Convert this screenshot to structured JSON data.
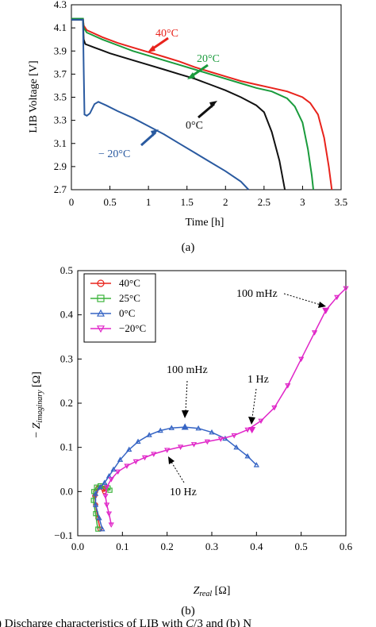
{
  "figure": {
    "panel_a_label": "(a)",
    "panel_b_label": "(b)",
    "caption": ") Discharge characteristics of LIB with C/3 and (b) N"
  },
  "chart_data": [
    {
      "type": "line",
      "panel": "(a)",
      "xlabel": "Time [h]",
      "ylabel": "LIB Voltage [V]",
      "xlim": [
        0,
        3.5
      ],
      "ylim": [
        2.7,
        4.3
      ],
      "xticks": [
        "0",
        "0.5",
        "1",
        "1.5",
        "2",
        "2.5",
        "3",
        "3.5"
      ],
      "yticks": [
        "2.7",
        "2.9",
        "3.1",
        "3.3",
        "3.5",
        "3.7",
        "3.9",
        "4.1",
        "4.3"
      ],
      "grid": false,
      "series": [
        {
          "name": "40°C",
          "color": "#e8231c",
          "points": [
            [
              0,
              4.18
            ],
            [
              0.15,
              4.18
            ],
            [
              0.16,
              4.12
            ],
            [
              0.2,
              4.08
            ],
            [
              0.4,
              4.02
            ],
            [
              0.6,
              3.97
            ],
            [
              0.8,
              3.93
            ],
            [
              1.0,
              3.89
            ],
            [
              1.2,
              3.85
            ],
            [
              1.4,
              3.81
            ],
            [
              1.6,
              3.76
            ],
            [
              1.8,
              3.72
            ],
            [
              2.0,
              3.68
            ],
            [
              2.2,
              3.64
            ],
            [
              2.4,
              3.61
            ],
            [
              2.6,
              3.58
            ],
            [
              2.8,
              3.55
            ],
            [
              3.0,
              3.5
            ],
            [
              3.1,
              3.45
            ],
            [
              3.2,
              3.35
            ],
            [
              3.28,
              3.15
            ],
            [
              3.34,
              2.9
            ],
            [
              3.38,
              2.7
            ]
          ]
        },
        {
          "name": "20°C",
          "color": "#1a9b3c",
          "points": [
            [
              0,
              4.18
            ],
            [
              0.15,
              4.18
            ],
            [
              0.16,
              4.1
            ],
            [
              0.2,
              4.06
            ],
            [
              0.4,
              4.0
            ],
            [
              0.6,
              3.95
            ],
            [
              0.8,
              3.9
            ],
            [
              1.0,
              3.86
            ],
            [
              1.2,
              3.82
            ],
            [
              1.4,
              3.78
            ],
            [
              1.6,
              3.74
            ],
            [
              1.8,
              3.7
            ],
            [
              2.0,
              3.66
            ],
            [
              2.2,
              3.62
            ],
            [
              2.4,
              3.58
            ],
            [
              2.6,
              3.55
            ],
            [
              2.8,
              3.49
            ],
            [
              2.9,
              3.42
            ],
            [
              3.0,
              3.28
            ],
            [
              3.07,
              3.05
            ],
            [
              3.12,
              2.82
            ],
            [
              3.14,
              2.7
            ]
          ]
        },
        {
          "name": "0°C",
          "color": "#111111",
          "points": [
            [
              0,
              4.17
            ],
            [
              0.15,
              4.17
            ],
            [
              0.16,
              4.0
            ],
            [
              0.18,
              3.96
            ],
            [
              0.3,
              3.93
            ],
            [
              0.5,
              3.88
            ],
            [
              0.8,
              3.82
            ],
            [
              1.0,
              3.78
            ],
            [
              1.2,
              3.74
            ],
            [
              1.4,
              3.7
            ],
            [
              1.6,
              3.66
            ],
            [
              1.8,
              3.61
            ],
            [
              2.0,
              3.56
            ],
            [
              2.2,
              3.5
            ],
            [
              2.4,
              3.43
            ],
            [
              2.5,
              3.37
            ],
            [
              2.6,
              3.2
            ],
            [
              2.7,
              2.95
            ],
            [
              2.77,
              2.7
            ]
          ]
        },
        {
          "name": "− 20°C",
          "color": "#2a5aa0",
          "points": [
            [
              0,
              4.17
            ],
            [
              0.15,
              4.17
            ],
            [
              0.16,
              3.75
            ],
            [
              0.17,
              3.35
            ],
            [
              0.2,
              3.34
            ],
            [
              0.24,
              3.36
            ],
            [
              0.3,
              3.44
            ],
            [
              0.35,
              3.46
            ],
            [
              0.45,
              3.43
            ],
            [
              0.6,
              3.38
            ],
            [
              0.8,
              3.32
            ],
            [
              1.0,
              3.25
            ],
            [
              1.2,
              3.18
            ],
            [
              1.4,
              3.1
            ],
            [
              1.6,
              3.02
            ],
            [
              1.8,
              2.94
            ],
            [
              2.0,
              2.86
            ],
            [
              2.2,
              2.77
            ],
            [
              2.3,
              2.7
            ]
          ]
        }
      ],
      "annotations": [
        {
          "text": "40°C",
          "at": [
            1.6,
            3.76
          ]
        },
        {
          "text": "20°C",
          "at": [
            2.2,
            3.62
          ]
        },
        {
          "text": "0°C",
          "at": [
            2.05,
            3.55
          ]
        },
        {
          "text": "− 20°C",
          "at": [
            1.0,
            3.25
          ]
        }
      ]
    },
    {
      "type": "line",
      "panel": "(b)",
      "xlabel": "Z_real [Ω]",
      "ylabel": "− Z_imaginary [Ω]",
      "xlim": [
        0,
        0.6
      ],
      "ylim": [
        -0.1,
        0.5
      ],
      "xticks": [
        "0.0",
        "0.1",
        "0.2",
        "0.3",
        "0.4",
        "0.5",
        "0.6"
      ],
      "yticks": [
        "−0.1",
        "0.0",
        "0.1",
        "0.2",
        "0.3",
        "0.4",
        "0.5"
      ],
      "grid": false,
      "legend": "top-left",
      "series": [
        {
          "name": "40°C",
          "color": "#e8231c",
          "marker": "circle",
          "points": [
            [
              0.05,
              -0.085
            ],
            [
              0.045,
              -0.06
            ],
            [
              0.04,
              -0.03
            ],
            [
              0.038,
              -0.01
            ],
            [
              0.04,
              0.0
            ],
            [
              0.045,
              0.008
            ],
            [
              0.052,
              0.01
            ],
            [
              0.058,
              0.005
            ],
            [
              0.06,
              0.0
            ]
          ]
        },
        {
          "name": "25°C",
          "color": "#3cb33c",
          "marker": "square",
          "points": [
            [
              0.045,
              -0.085
            ],
            [
              0.04,
              -0.05
            ],
            [
              0.035,
              -0.02
            ],
            [
              0.036,
              0.0
            ],
            [
              0.042,
              0.01
            ],
            [
              0.05,
              0.013
            ],
            [
              0.06,
              0.012
            ],
            [
              0.068,
              0.008
            ],
            [
              0.072,
              0.003
            ]
          ]
        },
        {
          "name": "0°C",
          "color": "#3564c4",
          "marker": "triangle-up",
          "points": [
            [
              0.055,
              -0.085
            ],
            [
              0.048,
              -0.06
            ],
            [
              0.04,
              -0.03
            ],
            [
              0.04,
              -0.005
            ],
            [
              0.05,
              0.01
            ],
            [
              0.06,
              0.02
            ],
            [
              0.07,
              0.035
            ],
            [
              0.08,
              0.05
            ],
            [
              0.095,
              0.072
            ],
            [
              0.115,
              0.095
            ],
            [
              0.135,
              0.113
            ],
            [
              0.16,
              0.128
            ],
            [
              0.185,
              0.138
            ],
            [
              0.21,
              0.144
            ],
            [
              0.24,
              0.146
            ],
            [
              0.27,
              0.143
            ],
            [
              0.3,
              0.134
            ],
            [
              0.33,
              0.12
            ],
            [
              0.355,
              0.1
            ],
            [
              0.38,
              0.08
            ],
            [
              0.4,
              0.06
            ]
          ]
        },
        {
          "name": "−20°C",
          "color": "#e026c8",
          "marker": "triangle-down",
          "points": [
            [
              0.075,
              -0.075
            ],
            [
              0.07,
              -0.05
            ],
            [
              0.065,
              -0.03
            ],
            [
              0.062,
              -0.01
            ],
            [
              0.065,
              0.01
            ],
            [
              0.075,
              0.028
            ],
            [
              0.09,
              0.045
            ],
            [
              0.11,
              0.058
            ],
            [
              0.13,
              0.068
            ],
            [
              0.15,
              0.077
            ],
            [
              0.17,
              0.085
            ],
            [
              0.2,
              0.094
            ],
            [
              0.23,
              0.101
            ],
            [
              0.26,
              0.107
            ],
            [
              0.29,
              0.113
            ],
            [
              0.32,
              0.119
            ],
            [
              0.35,
              0.127
            ],
            [
              0.38,
              0.14
            ],
            [
              0.41,
              0.16
            ],
            [
              0.44,
              0.19
            ],
            [
              0.47,
              0.24
            ],
            [
              0.5,
              0.3
            ],
            [
              0.53,
              0.36
            ],
            [
              0.555,
              0.41
            ],
            [
              0.58,
              0.44
            ],
            [
              0.6,
              0.46
            ]
          ]
        }
      ],
      "highlighted_points": [
        {
          "series": "0°C",
          "at": [
            0.24,
            0.146
          ]
        },
        {
          "series": "−20°C",
          "at": [
            0.39,
            0.14
          ]
        },
        {
          "series": "−20°C",
          "at": [
            0.555,
            0.41
          ]
        }
      ],
      "annotations": [
        {
          "text": "100 mHz",
          "series": "−20°C"
        },
        {
          "text": "100 mHz",
          "series": "0°C"
        },
        {
          "text": "1 Hz",
          "series": "−20°C"
        },
        {
          "text": "10 Hz",
          "series": "−20°C"
        }
      ]
    }
  ]
}
